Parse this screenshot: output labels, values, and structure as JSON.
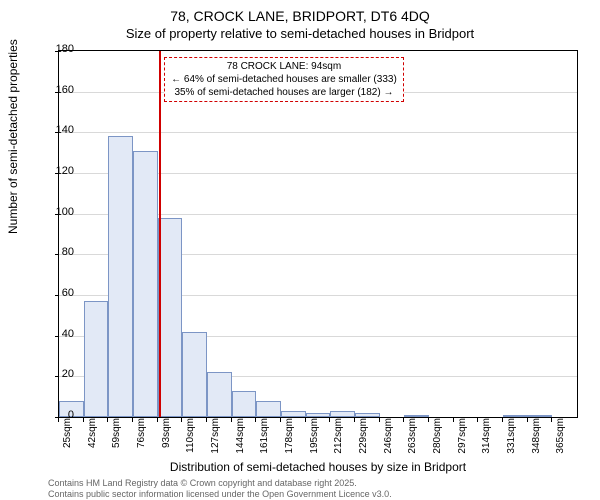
{
  "title": "78, CROCK LANE, BRIDPORT, DT6 4DQ",
  "subtitle": "Size of property relative to semi-detached houses in Bridport",
  "xlabel": "Distribution of semi-detached houses by size in Bridport",
  "ylabel": "Number of semi-detached properties",
  "footer_line1": "Contains HM Land Registry data © Crown copyright and database right 2025.",
  "footer_line2": "Contains public sector information licensed under the Open Government Licence v3.0.",
  "chart": {
    "type": "histogram",
    "background_color": "#ffffff",
    "grid_color": "#d9d9d9",
    "bar_fill": "#e2e9f6",
    "bar_stroke": "#7c95c5",
    "refline_color": "#d00000",
    "annotation_border": "#d00000",
    "ylim": [
      0,
      180
    ],
    "ytick_step": 20,
    "x_start": 25,
    "x_step": 17,
    "bars": [
      8,
      57,
      138,
      131,
      98,
      42,
      22,
      13,
      8,
      3,
      2,
      3,
      2,
      0,
      1,
      0,
      0,
      0,
      1,
      1,
      0
    ],
    "xticks": [
      "25sqm",
      "42sqm",
      "59sqm",
      "76sqm",
      "93sqm",
      "110sqm",
      "127sqm",
      "144sqm",
      "161sqm",
      "178sqm",
      "195sqm",
      "212sqm",
      "229sqm",
      "246sqm",
      "263sqm",
      "280sqm",
      "297sqm",
      "314sqm",
      "331sqm",
      "348sqm",
      "365sqm"
    ],
    "refline_value": 94,
    "annotation": {
      "line1": "78 CROCK LANE: 94sqm",
      "line2": "← 64% of semi-detached houses are smaller (333)",
      "line3": "35% of semi-detached houses are larger (182) →"
    }
  }
}
